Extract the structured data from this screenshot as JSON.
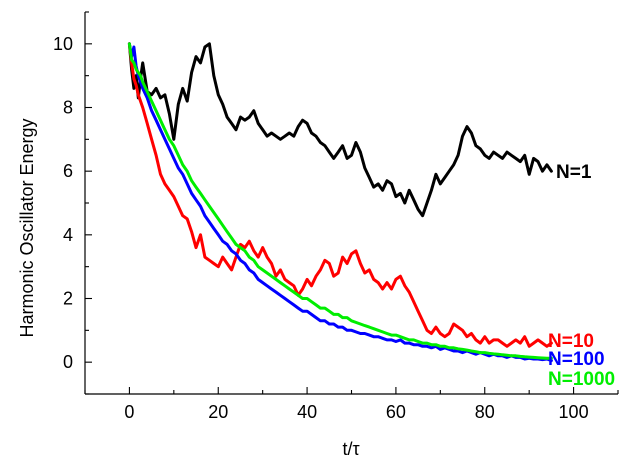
{
  "chart_data": {
    "type": "line",
    "title": "",
    "xlabel": "t/τ",
    "ylabel": "Harmonic Oscillator Energy",
    "xlim": [
      -10,
      110
    ],
    "ylim": [
      -1,
      11
    ],
    "xticks": [
      0,
      20,
      40,
      60,
      80,
      100
    ],
    "yticks": [
      0,
      2,
      4,
      6,
      8,
      10
    ],
    "xtick_labels": [
      "0",
      "20",
      "40",
      "60",
      "80",
      "100"
    ],
    "ytick_labels": [
      "0",
      "2",
      "4",
      "6",
      "8",
      "10"
    ],
    "grid": false,
    "legend": "inline labels at right end of each series",
    "series": [
      {
        "name": "N=1",
        "color": "#000000",
        "x": [
          0,
          0.5,
          1,
          1.5,
          2,
          2.5,
          3,
          4,
          5,
          6,
          7,
          8,
          9,
          10,
          11,
          12,
          13,
          14,
          15,
          16,
          17,
          18,
          19,
          20,
          21,
          22,
          23,
          24,
          25,
          26,
          27,
          28,
          29,
          30,
          31,
          32,
          33,
          34,
          35,
          36,
          37,
          38,
          39,
          40,
          41,
          42,
          43,
          44,
          45,
          46,
          47,
          48,
          49,
          50,
          51,
          52,
          53,
          54,
          55,
          56,
          57,
          58,
          59,
          60,
          61,
          62,
          63,
          64,
          65,
          66,
          67,
          68,
          69,
          70,
          71,
          72,
          73,
          74,
          75,
          76,
          77,
          78,
          79,
          80,
          81,
          82,
          83,
          84,
          85,
          86,
          87,
          88,
          89,
          90,
          91,
          92,
          93,
          94,
          95
        ],
        "values": [
          10,
          9.2,
          8.6,
          9.0,
          8.3,
          8.9,
          9.4,
          8.5,
          8.4,
          8.6,
          8.3,
          8.4,
          7.8,
          7.0,
          8.1,
          8.6,
          8.2,
          9.1,
          9.6,
          9.4,
          9.9,
          10.0,
          9.0,
          8.4,
          8.1,
          7.7,
          7.5,
          7.3,
          7.7,
          7.6,
          7.7,
          7.9,
          7.5,
          7.3,
          7.1,
          7.2,
          7.1,
          7.0,
          7.1,
          7.2,
          7.1,
          7.4,
          7.6,
          7.5,
          7.2,
          7.1,
          6.9,
          6.8,
          6.6,
          6.4,
          6.6,
          6.8,
          6.4,
          6.5,
          6.9,
          6.6,
          6.1,
          5.8,
          5.5,
          5.6,
          5.4,
          5.7,
          5.6,
          5.2,
          5.3,
          5.0,
          5.4,
          5.1,
          4.8,
          4.6,
          5.0,
          5.4,
          5.9,
          5.6,
          5.8,
          6.0,
          6.2,
          6.5,
          7.1,
          7.4,
          7.2,
          6.8,
          6.7,
          6.5,
          6.4,
          6.6,
          6.5,
          6.4,
          6.6,
          6.5,
          6.4,
          6.3,
          6.5,
          5.9,
          6.4,
          6.3,
          6.0,
          6.2,
          6.0
        ]
      },
      {
        "name": "N=10",
        "color": "#ff0000",
        "x": [
          0,
          0.5,
          1,
          1.5,
          2,
          2.5,
          3,
          4,
          5,
          6,
          7,
          8,
          9,
          10,
          11,
          12,
          13,
          14,
          15,
          16,
          17,
          18,
          19,
          20,
          21,
          22,
          23,
          24,
          25,
          26,
          27,
          28,
          29,
          30,
          31,
          32,
          33,
          34,
          35,
          36,
          37,
          38,
          39,
          40,
          41,
          42,
          43,
          44,
          45,
          46,
          47,
          48,
          49,
          50,
          51,
          52,
          53,
          54,
          55,
          56,
          57,
          58,
          59,
          60,
          61,
          62,
          63,
          64,
          65,
          66,
          67,
          68,
          69,
          70,
          71,
          72,
          73,
          74,
          75,
          76,
          77,
          78,
          79,
          80,
          81,
          82,
          83,
          84,
          85,
          86,
          87,
          88,
          89,
          90,
          91,
          92,
          93,
          94,
          95
        ],
        "values": [
          10,
          9.4,
          8.9,
          8.7,
          8.4,
          8.2,
          8.0,
          7.5,
          7.0,
          6.5,
          5.9,
          5.6,
          5.4,
          5.2,
          4.9,
          4.6,
          4.5,
          4.1,
          3.6,
          4.0,
          3.3,
          3.2,
          3.1,
          3.0,
          3.3,
          3.1,
          2.9,
          3.3,
          3.7,
          3.6,
          3.8,
          3.5,
          3.3,
          3.6,
          3.3,
          3.1,
          2.7,
          2.9,
          2.6,
          2.5,
          2.4,
          2.1,
          2.3,
          2.6,
          2.4,
          2.7,
          2.9,
          3.2,
          3.1,
          2.7,
          2.8,
          3.3,
          3.1,
          3.4,
          3.5,
          3.1,
          2.8,
          2.9,
          2.6,
          2.5,
          2.3,
          2.5,
          2.3,
          2.6,
          2.7,
          2.4,
          2.2,
          1.9,
          1.6,
          1.3,
          1.0,
          0.9,
          1.1,
          0.9,
          0.8,
          0.9,
          1.2,
          1.1,
          1.0,
          0.8,
          0.9,
          0.7,
          0.6,
          0.8,
          0.6,
          0.7,
          0.7,
          0.6,
          0.5,
          0.6,
          0.7,
          0.6,
          0.8,
          0.5,
          0.6,
          0.7,
          0.6,
          0.5,
          0.6
        ]
      },
      {
        "name": "N=100",
        "color": "#0000ff",
        "x": [
          0,
          0.5,
          1,
          1.5,
          2,
          2.5,
          3,
          4,
          5,
          6,
          7,
          8,
          9,
          10,
          11,
          12,
          13,
          14,
          15,
          16,
          17,
          18,
          19,
          20,
          21,
          22,
          23,
          24,
          25,
          26,
          27,
          28,
          29,
          30,
          31,
          32,
          33,
          34,
          35,
          36,
          37,
          38,
          39,
          40,
          41,
          42,
          43,
          44,
          45,
          46,
          47,
          48,
          49,
          50,
          51,
          52,
          53,
          54,
          55,
          56,
          57,
          58,
          59,
          60,
          61,
          62,
          63,
          64,
          65,
          66,
          67,
          68,
          69,
          70,
          71,
          72,
          73,
          74,
          75,
          76,
          77,
          78,
          79,
          80,
          81,
          82,
          83,
          84,
          85,
          86,
          87,
          88,
          89,
          90,
          91,
          92,
          93,
          94,
          95
        ],
        "values": [
          10,
          9.6,
          9.9,
          9.3,
          9.0,
          8.8,
          8.6,
          8.3,
          7.9,
          7.6,
          7.3,
          7.0,
          6.7,
          6.4,
          6.1,
          5.9,
          5.6,
          5.3,
          5.1,
          4.9,
          4.6,
          4.4,
          4.2,
          4.0,
          3.8,
          3.7,
          3.5,
          3.4,
          3.2,
          3.1,
          2.9,
          2.8,
          2.6,
          2.5,
          2.4,
          2.3,
          2.2,
          2.1,
          2.0,
          1.9,
          1.8,
          1.7,
          1.6,
          1.6,
          1.5,
          1.4,
          1.3,
          1.3,
          1.2,
          1.2,
          1.1,
          1.1,
          1.0,
          1.0,
          0.95,
          0.9,
          0.9,
          0.85,
          0.8,
          0.8,
          0.75,
          0.7,
          0.7,
          0.65,
          0.7,
          0.6,
          0.6,
          0.55,
          0.55,
          0.5,
          0.5,
          0.45,
          0.5,
          0.4,
          0.45,
          0.4,
          0.35,
          0.35,
          0.3,
          0.35,
          0.3,
          0.25,
          0.3,
          0.25,
          0.2,
          0.25,
          0.2,
          0.2,
          0.15,
          0.2,
          0.15,
          0.15,
          0.1,
          0.12,
          0.1,
          0.1,
          0.08,
          0.1,
          0.05
        ]
      },
      {
        "name": "N=1000",
        "color": "#00ee00",
        "x": [
          0,
          0.5,
          1,
          1.5,
          2,
          2.5,
          3,
          4,
          5,
          6,
          7,
          8,
          9,
          10,
          11,
          12,
          13,
          14,
          15,
          16,
          17,
          18,
          19,
          20,
          21,
          22,
          23,
          24,
          25,
          26,
          27,
          28,
          29,
          30,
          31,
          32,
          33,
          34,
          35,
          36,
          37,
          38,
          39,
          40,
          41,
          42,
          43,
          44,
          45,
          46,
          47,
          48,
          49,
          50,
          51,
          52,
          53,
          54,
          55,
          56,
          57,
          58,
          59,
          60,
          61,
          62,
          63,
          64,
          65,
          66,
          67,
          68,
          69,
          70,
          71,
          72,
          73,
          74,
          75,
          76,
          77,
          78,
          79,
          80,
          81,
          82,
          83,
          84,
          85,
          86,
          87,
          88,
          89,
          90,
          91,
          92,
          93,
          94,
          95
        ],
        "values": [
          10,
          9.5,
          9.4,
          9.2,
          9.1,
          9.0,
          8.8,
          8.5,
          8.2,
          7.9,
          7.6,
          7.3,
          7.0,
          6.8,
          6.5,
          6.2,
          6.0,
          5.7,
          5.5,
          5.3,
          5.1,
          4.9,
          4.7,
          4.5,
          4.3,
          4.1,
          3.9,
          3.7,
          3.6,
          3.5,
          3.3,
          3.2,
          3.0,
          2.9,
          2.8,
          2.7,
          2.6,
          2.5,
          2.4,
          2.3,
          2.2,
          2.1,
          2.0,
          2.0,
          1.9,
          1.8,
          1.7,
          1.7,
          1.6,
          1.5,
          1.5,
          1.4,
          1.4,
          1.3,
          1.25,
          1.2,
          1.15,
          1.1,
          1.05,
          1.0,
          0.95,
          0.9,
          0.85,
          0.85,
          0.8,
          0.75,
          0.7,
          0.7,
          0.65,
          0.6,
          0.6,
          0.55,
          0.55,
          0.5,
          0.5,
          0.45,
          0.45,
          0.42,
          0.4,
          0.38,
          0.35,
          0.33,
          0.3,
          0.3,
          0.28,
          0.26,
          0.25,
          0.23,
          0.22,
          0.2,
          0.2,
          0.18,
          0.17,
          0.16,
          0.15,
          0.14,
          0.13,
          0.12,
          0.12
        ]
      }
    ]
  }
}
